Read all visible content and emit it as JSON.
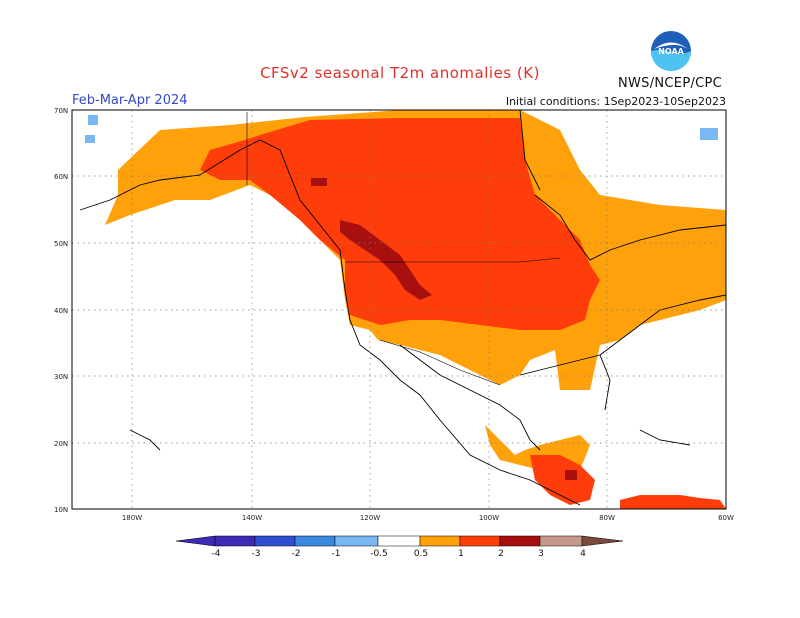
{
  "header": {
    "title": "CFSv2 seasonal T2m anomalies (K)",
    "period": "Feb-Mar-Apr 2024",
    "initial_conditions": "Initial conditions: 1Sep2023-10Sep2023",
    "agency": "NWS/NCEP/CPC",
    "logo_text": "NOAA"
  },
  "map": {
    "lat_labels": [
      "70N",
      "60N",
      "50N",
      "40N",
      "30N",
      "20N",
      "10N"
    ],
    "lon_labels": [
      "180W",
      "140W",
      "120W",
      "100W",
      "80W",
      "60W"
    ]
  },
  "legend": {
    "labels": [
      "-4",
      "-3",
      "-2",
      "-1",
      "-0.5",
      "0.5",
      "1",
      "2",
      "3",
      "4"
    ],
    "colors": {
      "lt_-3": "#3b2bb5",
      "-3_-2": "#2e4fd0",
      "-2_-1": "#3a88e0",
      "-1_-0.5": "#79b8f2",
      "neutral": "#ffffff",
      "0.5_1": "#ffa10b",
      "1_2": "#ff3d0a",
      "2_3": "#a80f0f",
      "3_4": "#c7998c",
      "gt_4": "#7a4a3a"
    }
  }
}
